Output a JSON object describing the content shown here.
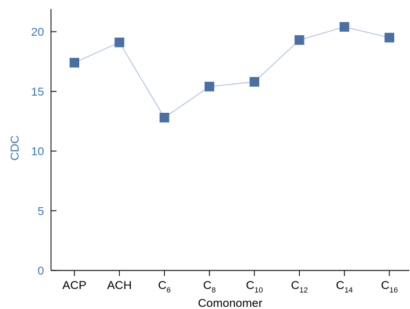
{
  "chart_data": {
    "type": "line",
    "categories": [
      {
        "base": "ACP",
        "sub": ""
      },
      {
        "base": "ACH",
        "sub": ""
      },
      {
        "base": "C",
        "sub": "6"
      },
      {
        "base": "C",
        "sub": "8"
      },
      {
        "base": "C",
        "sub": "10"
      },
      {
        "base": "C",
        "sub": "12"
      },
      {
        "base": "C",
        "sub": "14"
      },
      {
        "base": "C",
        "sub": "16"
      }
    ],
    "values": [
      17.4,
      19.1,
      12.8,
      15.4,
      15.8,
      19.3,
      20.4,
      19.5
    ],
    "xlabel": "Comonomer",
    "ylabel": "CDC",
    "ylim": [
      0,
      22
    ],
    "yticks": [
      0,
      5,
      10,
      15,
      20
    ],
    "grid": false,
    "colors": {
      "marker": "#4a6fa5",
      "line": "#a9bde0",
      "ylabel": "#3a78b8",
      "yticks": "#3a78b8"
    }
  }
}
